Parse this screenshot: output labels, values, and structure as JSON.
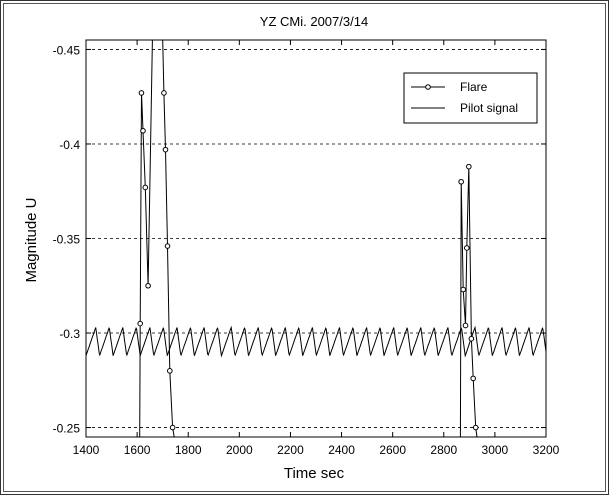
{
  "chart_data": {
    "type": "line",
    "title": "YZ CMi. 2007/3/14",
    "xlabel": "Time sec",
    "ylabel": "Magnitude U",
    "xlim": [
      1400,
      3200
    ],
    "ylim": [
      -0.245,
      -0.455
    ],
    "y_axis_inverted": true,
    "x_ticks": [
      1400,
      1600,
      1800,
      2000,
      2200,
      2400,
      2600,
      2800,
      3000,
      3200
    ],
    "x_tick_labels": [
      "1400",
      "1600",
      "1800",
      "2000",
      "2200",
      "2400",
      "2600",
      "2800",
      "3000",
      "3200"
    ],
    "y_ticks": [
      -0.45,
      -0.4,
      -0.35,
      -0.3,
      -0.25
    ],
    "y_tick_labels": [
      "-0.45",
      "-0.4",
      "-0.35",
      "-0.3",
      "-0.25"
    ],
    "grid": "horizontal dashed",
    "legend_position": "top-right",
    "series": [
      {
        "name": "Flare",
        "style": "line-with-circle-markers",
        "color": "#000000",
        "segments": [
          [
            [
              1610,
              -0.245
            ],
            [
              1612,
              -0.305
            ],
            [
              1617,
              -0.427
            ],
            [
              1623,
              -0.407
            ],
            [
              1632,
              -0.377
            ],
            [
              1643,
              -0.325
            ],
            [
              1660,
              -0.455
            ]
          ],
          [
            [
              1700,
              -0.455
            ],
            [
              1705,
              -0.427
            ],
            [
              1711,
              -0.397
            ],
            [
              1719,
              -0.346
            ],
            [
              1728,
              -0.28
            ],
            [
              1739,
              -0.25
            ],
            [
              1745,
              -0.245
            ]
          ],
          [
            [
              2865,
              -0.245
            ],
            [
              2868,
              -0.38
            ],
            [
              2876,
              -0.323
            ],
            [
              2885,
              -0.304
            ],
            [
              2890,
              -0.345
            ],
            [
              2898,
              -0.388
            ],
            [
              2908,
              -0.297
            ],
            [
              2915,
              -0.276
            ],
            [
              2925,
              -0.25
            ],
            [
              2930,
              -0.245
            ]
          ]
        ]
      },
      {
        "name": "Pilot signal",
        "style": "line",
        "color": "#000000",
        "period": 53,
        "baseline_values": [
          -0.288,
          -0.303
        ],
        "note_values": "sawtooth oscillation between about -0.288 and -0.303 across full time range"
      }
    ]
  }
}
